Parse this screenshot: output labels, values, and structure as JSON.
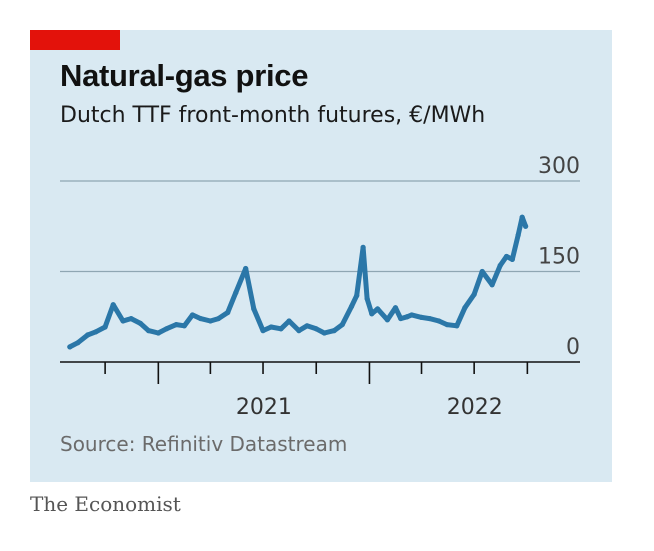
{
  "accent_color": "#e3120b",
  "footer": {
    "brand": "The Economist"
  },
  "chart_data": {
    "type": "line",
    "title": "Natural-gas price",
    "subtitle": "Dutch TTF front-month futures, €/MWh",
    "source": "Source: Refinitiv Datastream",
    "ylim": [
      0,
      300
    ],
    "y_ticks": [
      0,
      150,
      300
    ],
    "x_tick_labels": [
      "2021",
      "2022"
    ],
    "grid": true,
    "line_color": "#2b77a8",
    "series": [
      {
        "x": [
          "2020-08-01",
          "2020-08-15",
          "2020-09-01",
          "2020-09-15",
          "2020-10-01",
          "2020-10-15",
          "2020-11-01",
          "2020-11-15",
          "2020-12-01",
          "2020-12-15",
          "2021-01-01",
          "2021-01-15",
          "2021-02-01",
          "2021-02-15",
          "2021-03-01",
          "2021-03-15",
          "2021-04-01",
          "2021-04-15",
          "2021-05-01",
          "2021-05-15",
          "2021-06-01",
          "2021-06-15",
          "2021-07-01",
          "2021-07-15",
          "2021-08-01",
          "2021-08-15",
          "2021-09-01",
          "2021-09-15",
          "2021-10-01",
          "2021-10-15",
          "2021-11-01",
          "2021-11-15",
          "2021-12-01",
          "2021-12-10",
          "2021-12-21",
          "2021-12-28",
          "2022-01-05",
          "2022-01-15",
          "2022-02-01",
          "2022-02-15",
          "2022-02-24",
          "2022-03-07",
          "2022-03-15",
          "2022-04-01",
          "2022-04-15",
          "2022-05-01",
          "2022-05-15",
          "2022-06-01",
          "2022-06-15",
          "2022-07-01",
          "2022-07-15",
          "2022-08-01",
          "2022-08-15",
          "2022-08-26",
          "2022-09-05",
          "2022-09-15",
          "2022-09-22",
          "2022-09-28"
        ],
        "values": [
          25,
          32,
          45,
          50,
          58,
          95,
          68,
          72,
          64,
          52,
          48,
          55,
          62,
          60,
          78,
          72,
          68,
          72,
          82,
          115,
          155,
          88,
          52,
          58,
          55,
          68,
          52,
          60,
          55,
          48,
          52,
          62,
          92,
          110,
          190,
          105,
          80,
          88,
          70,
          90,
          72,
          75,
          78,
          74,
          72,
          68,
          62,
          60,
          90,
          112,
          150,
          128,
          160,
          175,
          170,
          210,
          240,
          225
        ]
      }
    ]
  }
}
